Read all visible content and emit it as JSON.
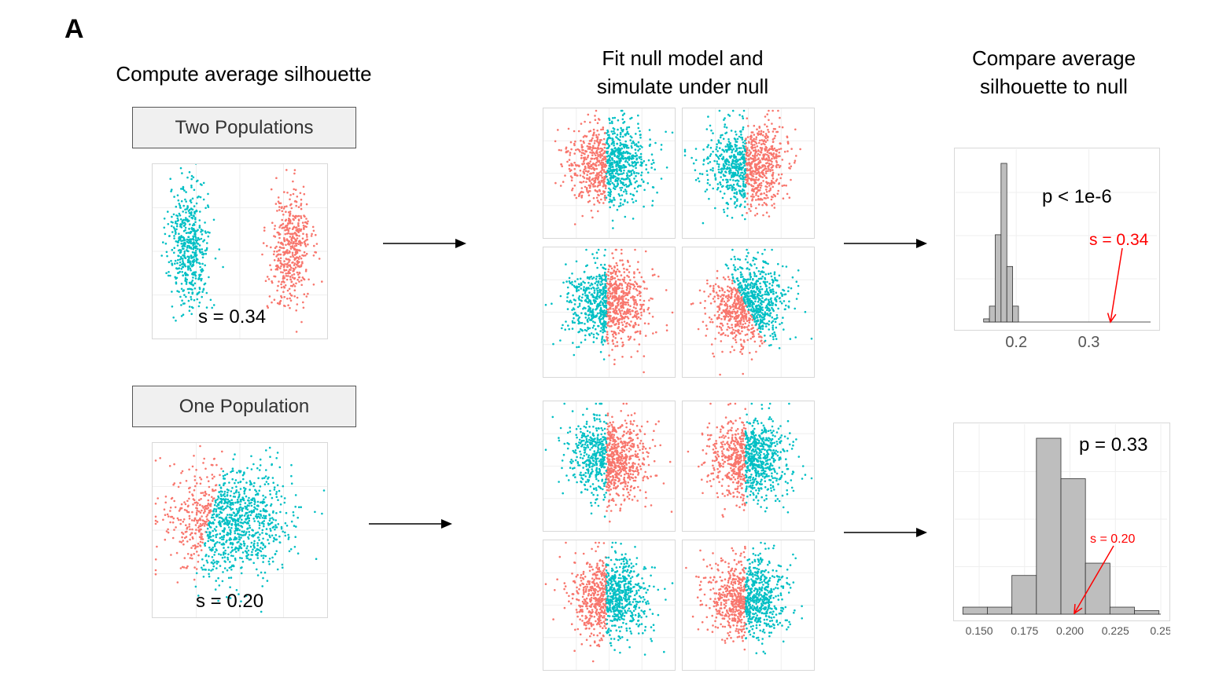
{
  "panel_label": "A",
  "columns": {
    "compute_title": "Compute average silhouette",
    "null_title_line1": "Fit null model and",
    "null_title_line2": "simulate under null",
    "compare_title_line1": "Compare average",
    "compare_title_line2": "silhouette to null"
  },
  "rows": [
    {
      "population_label": "Two Populations",
      "observed_s_label": "s = 0.34"
    },
    {
      "population_label": "One Population",
      "observed_s_label": "s = 0.20"
    }
  ],
  "colors": {
    "cluster_a": "#F8766D",
    "cluster_b": "#00BFC4",
    "hist_fill": "#BEBEBE",
    "annotation": "#FF0000"
  },
  "chart_data": [
    {
      "type": "bar",
      "title": "",
      "xlabel": "",
      "ylabel": "",
      "p_label": "p < 1e-6",
      "observed_label": "s = 0.34",
      "observed_value": 0.34,
      "xlim": [
        0.125,
        0.385
      ],
      "x_ticks": [
        "0.2",
        "0.3"
      ],
      "x_tick_values": [
        0.2,
        0.3
      ],
      "bin_edges": [
        0.155,
        0.163,
        0.171,
        0.179,
        0.187,
        0.195,
        0.203
      ],
      "values": [
        2,
        10,
        55,
        100,
        35,
        10
      ],
      "grid": true
    },
    {
      "type": "bar",
      "title": "",
      "xlabel": "",
      "ylabel": "",
      "p_label": "p = 0.33",
      "observed_label": "s = 0.20",
      "observed_value": 0.2,
      "xlim": [
        0.14,
        0.25
      ],
      "x_ticks": [
        "0.150",
        "0.175",
        "0.200",
        "0.225",
        "0.25"
      ],
      "x_tick_values": [
        0.15,
        0.175,
        0.2,
        0.225,
        0.25
      ],
      "bin_edges": [
        0.141,
        0.1545,
        0.168,
        0.1815,
        0.195,
        0.2085,
        0.222,
        0.2355,
        0.249
      ],
      "values": [
        4,
        4,
        22,
        100,
        77,
        29,
        4,
        2
      ],
      "grid": true
    }
  ]
}
